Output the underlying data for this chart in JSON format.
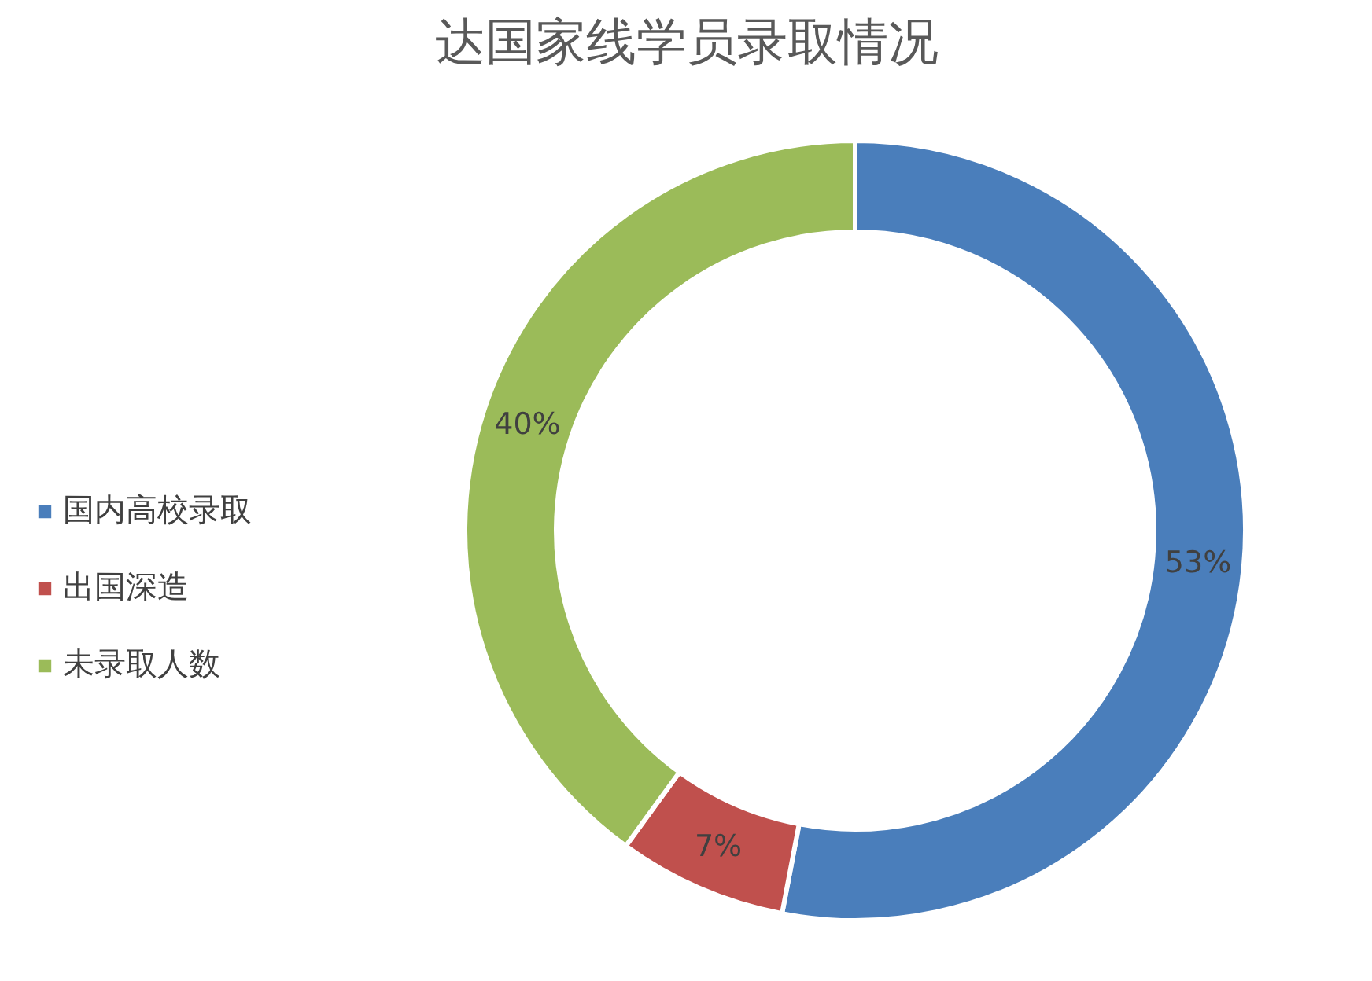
{
  "chart_data": {
    "type": "donut",
    "title": "达国家线学员录取情况",
    "categories": [
      "国内高校录取",
      "出国深造",
      "未录取人数"
    ],
    "values": [
      53,
      7,
      40
    ],
    "colors": [
      "#4a7ebb",
      "#c0504d",
      "#9bbb59"
    ],
    "value_labels": [
      "53%",
      "7%",
      "40%"
    ],
    "legend": "left"
  }
}
